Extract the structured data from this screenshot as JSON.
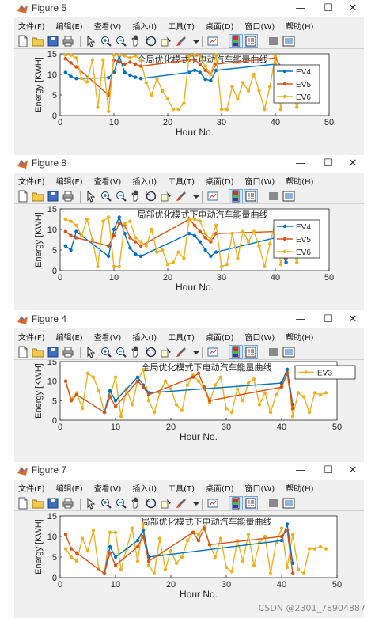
{
  "menus": [
    "文件(F)",
    "编辑(E)",
    "查看(V)",
    "插入(I)",
    "工具(T)",
    "桌面(D)",
    "窗口(W)",
    "帮助(H)"
  ],
  "toolbar_icons": [
    "new-file-icon",
    "open-file-icon",
    "save-icon",
    "print-icon",
    "separator",
    "pointer-icon",
    "zoom-in-icon",
    "zoom-out-icon",
    "pan-icon",
    "rotate-icon",
    "data-cursor-icon",
    "brush-icon",
    "brush-menu-icon",
    "separator",
    "link-plot-icon",
    "separator",
    "colorbar-icon",
    "legend-icon",
    "separator",
    "hide-plot-tools-icon",
    "show-plot-tools-icon"
  ],
  "window_buttons": {
    "minimize": "—",
    "maximize": "☐",
    "close": "✕"
  },
  "colors": {
    "ev4": "#0072bd",
    "ev5": "#d95319",
    "ev6": "#edb120",
    "ev3": "#edb120",
    "axes_bg": "#ffffff",
    "figure_bg": "#f0f0f0"
  },
  "watermark": "CSDN @2301_78904887",
  "figures": [
    {
      "window_title": "Figure 5",
      "chart_data": {
        "type": "line",
        "title": "全局优化模式下电动汽车能量曲线",
        "xlabel": "Hour No.",
        "ylabel": "Energy [KWH]",
        "xlim": [
          0,
          50
        ],
        "ylim": [
          0,
          15
        ],
        "xticks": [
          "0",
          "10",
          "20",
          "30",
          "40",
          "50"
        ],
        "yticks": [
          "0",
          "5",
          "10",
          "15"
        ],
        "legend_position": "top-right",
        "series": [
          {
            "name": "EV4",
            "color": "#0072bd",
            "x": [
              1,
              2,
              3,
              9,
              10,
              11,
              12,
              13,
              14,
              15,
              24,
              25,
              26,
              27,
              28,
              29,
              40,
              41,
              42
            ],
            "y": [
              10.5,
              9.5,
              9.0,
              9.2,
              10.5,
              14.5,
              10.5,
              9.8,
              9.3,
              9.0,
              10.5,
              11.0,
              10.5,
              8.8,
              8.5,
              11.0,
              12.5,
              8.5,
              5.0
            ]
          },
          {
            "name": "EV5",
            "color": "#d95319",
            "x": [
              1,
              2,
              3,
              9,
              10,
              11,
              12,
              13,
              14,
              15,
              24,
              25,
              26,
              27,
              28,
              29,
              40,
              41,
              42
            ],
            "y": [
              13.8,
              12.8,
              11.8,
              5.0,
              13.5,
              13.0,
              12.5,
              13.0,
              12.5,
              12.0,
              13.5,
              13.5,
              12.5,
              11.0,
              10.0,
              12.5,
              14.0,
              12.0,
              7.5
            ]
          },
          {
            "name": "EV6",
            "color": "#edb120",
            "x": [
              1,
              2,
              3,
              4,
              5,
              6,
              7,
              8,
              9,
              10,
              11,
              12,
              13,
              14,
              15,
              16,
              17,
              18,
              19,
              20,
              21,
              22,
              23,
              24,
              25,
              26,
              27,
              28,
              29,
              30,
              31,
              32,
              33,
              34,
              35,
              36,
              37,
              38,
              39,
              40,
              41,
              42,
              43,
              44,
              45,
              46,
              47,
              48
            ],
            "y": [
              14.7,
              14.7,
              14.0,
              9.0,
              8.2,
              13.5,
              2.0,
              13.5,
              1.0,
              14.7,
              14.7,
              14.5,
              14.0,
              14.5,
              13.5,
              8.0,
              5.0,
              9.0,
              6.0,
              4.0,
              1.5,
              1.5,
              3.0,
              14.5,
              14.7,
              14.5,
              12.0,
              10.0,
              14.7,
              1.5,
              1.5,
              7.0,
              4.0,
              8.0,
              6.0,
              10.0,
              6.0,
              1.5,
              7.0,
              14.5,
              1.5,
              7.0,
              6.0,
              2.0,
              6.0,
              6.0,
              6.0,
              6.5
            ]
          }
        ]
      }
    },
    {
      "window_title": "Figure 8",
      "chart_data": {
        "type": "line",
        "title": "局部优化模式下电动汽车能量曲线",
        "xlabel": "Hour No.",
        "ylabel": "Energy [KWH]",
        "xlim": [
          0,
          50
        ],
        "ylim": [
          0,
          15
        ],
        "xticks": [
          "0",
          "10",
          "20",
          "30",
          "40",
          "50"
        ],
        "yticks": [
          "0",
          "5",
          "10",
          "15"
        ],
        "legend_position": "top-right",
        "series": [
          {
            "name": "EV4",
            "color": "#0072bd",
            "x": [
              1,
              2,
              3,
              9,
              10,
              11,
              12,
              13,
              14,
              15,
              24,
              25,
              26,
              27,
              28,
              29,
              40,
              41,
              42
            ],
            "y": [
              6.0,
              5.0,
              9.5,
              3.5,
              10.0,
              13.0,
              9.0,
              5.5,
              4.0,
              3.5,
              9.0,
              8.5,
              7.0,
              5.0,
              3.5,
              4.5,
              8.0,
              5.0,
              2.0
            ]
          },
          {
            "name": "EV5",
            "color": "#d95319",
            "x": [
              1,
              2,
              3,
              9,
              10,
              11,
              12,
              13,
              14,
              15,
              24,
              25,
              26,
              27,
              28,
              29,
              40,
              41,
              42
            ],
            "y": [
              9.5,
              8.5,
              8.0,
              6.0,
              8.5,
              11.5,
              11.0,
              8.0,
              7.0,
              6.0,
              12.5,
              11.0,
              9.5,
              8.0,
              7.0,
              9.0,
              9.5,
              7.0,
              3.0
            ]
          },
          {
            "name": "EV6",
            "color": "#edb120",
            "x": [
              1,
              2,
              3,
              4,
              5,
              6,
              7,
              8,
              9,
              10,
              11,
              12,
              13,
              14,
              15,
              16,
              17,
              18,
              19,
              20,
              21,
              22,
              23,
              24,
              25,
              26,
              27,
              28,
              29,
              30,
              31,
              32,
              33,
              34,
              35,
              36,
              37,
              38,
              39,
              40,
              41,
              42,
              43,
              44,
              45,
              46,
              47,
              48
            ],
            "y": [
              12.5,
              12.0,
              11.0,
              8.5,
              12.5,
              7.5,
              1.0,
              12.0,
              13.0,
              1.0,
              1.0,
              11.5,
              12.0,
              8.0,
              7.0,
              6.0,
              10.0,
              4.5,
              5.0,
              1.5,
              2.0,
              4.5,
              3.0,
              12.5,
              12.5,
              12.0,
              9.0,
              7.5,
              11.0,
              1.0,
              1.5,
              9.0,
              3.0,
              9.5,
              7.0,
              9.5,
              6.0,
              1.0,
              6.5,
              12.0,
              1.5,
              7.0,
              6.5,
              2.0,
              7.0,
              6.0,
              6.5,
              7.0
            ]
          }
        ]
      }
    },
    {
      "window_title": "Figure 4",
      "chart_data": {
        "type": "line",
        "title": "全局优化模式下电动汽车能量曲线",
        "xlabel": "Hour No.",
        "ylabel": "Energy [KWH]",
        "xlim": [
          0,
          50
        ],
        "ylim": [
          0,
          15
        ],
        "xticks": [
          "0",
          "10",
          "20",
          "30",
          "40",
          "50"
        ],
        "yticks": [
          "0",
          "5",
          "10",
          "15"
        ],
        "legend_position": "top-right",
        "series": [
          {
            "name": "EV3",
            "color": "#edb120",
            "x": [
              1,
              2,
              3,
              4,
              5,
              6,
              7,
              8,
              9,
              10,
              11,
              12,
              13,
              14,
              15,
              16,
              17,
              18,
              19,
              20,
              21,
              22,
              23,
              24,
              25,
              26,
              27,
              28,
              29,
              30,
              31,
              32,
              33,
              34,
              35,
              36,
              37,
              38,
              39,
              40,
              41,
              42,
              43,
              44,
              45,
              46,
              47,
              48
            ],
            "y": [
              10.0,
              5.5,
              7.0,
              3.0,
              12.0,
              11.0,
              7.5,
              2.0,
              6.0,
              11.0,
              1.0,
              8.0,
              4.0,
              10.0,
              13.0,
              5.0,
              2.0,
              7.0,
              10.0,
              8.0,
              4.0,
              2.5,
              9.0,
              11.5,
              10.0,
              8.0,
              4.5,
              9.0,
              11.0,
              3.0,
              2.0,
              8.0,
              5.0,
              9.5,
              10.5,
              4.0,
              7.0,
              2.0,
              6.5,
              9.0,
              12.5,
              1.0,
              7.0,
              6.0,
              2.0,
              7.0,
              6.5,
              7.0
            ]
          }
        ],
        "overlay_series": [
          {
            "color": "#0072bd",
            "x": [
              8,
              9,
              10,
              14,
              15,
              16,
              40,
              41,
              42
            ],
            "y": [
              2.0,
              7.5,
              5.0,
              11.0,
              9.0,
              7.0,
              9.5,
              13.0,
              4.0
            ]
          },
          {
            "color": "#d95319",
            "x": [
              1,
              2,
              3,
              8,
              9,
              10,
              14,
              15,
              16,
              24,
              25,
              26,
              27,
              40,
              41,
              42
            ],
            "y": [
              10.0,
              5.0,
              6.5,
              2.0,
              6.0,
              3.5,
              10.0,
              8.5,
              6.5,
              11.0,
              12.0,
              8.5,
              5.0,
              8.5,
              12.0,
              3.0
            ]
          }
        ]
      }
    },
    {
      "window_title": "Figure 7",
      "chart_data": {
        "type": "line",
        "title": "局部优化模式下电动汽车能量曲线",
        "xlabel": "Hour No.",
        "ylabel": "Energy [KWH]",
        "xlim": [
          0,
          50
        ],
        "ylim": [
          0,
          15
        ],
        "xticks": [
          "0",
          "10",
          "20",
          "30",
          "40",
          "50"
        ],
        "yticks": [
          "0",
          "5",
          "10",
          "15"
        ],
        "legend_position": "none",
        "series": [
          {
            "color": "#edb120",
            "x": [
              1,
              2,
              3,
              4,
              5,
              6,
              7,
              8,
              9,
              10,
              11,
              12,
              13,
              14,
              15,
              16,
              17,
              18,
              19,
              20,
              21,
              22,
              23,
              24,
              25,
              26,
              27,
              28,
              29,
              30,
              31,
              32,
              33,
              34,
              35,
              36,
              37,
              38,
              39,
              40,
              41,
              42,
              43,
              44,
              45,
              46,
              47,
              48
            ],
            "y": [
              7.0,
              5.0,
              4.0,
              9.5,
              6.5,
              11.5,
              2.0,
              1.0,
              11.0,
              11.0,
              2.0,
              7.0,
              12.0,
              4.0,
              13.0,
              3.0,
              1.0,
              9.5,
              2.0,
              6.5,
              3.5,
              5.0,
              9.0,
              11.0,
              10.5,
              12.5,
              8.0,
              5.0,
              9.5,
              2.5,
              1.5,
              9.0,
              4.0,
              10.5,
              3.0,
              8.5,
              10.0,
              1.0,
              8.5,
              12.0,
              2.5,
              10.5,
              2.0,
              1.0,
              7.0,
              7.0,
              7.5,
              7.0
            ]
          }
        ],
        "overlay_series": [
          {
            "color": "#0072bd",
            "x": [
              8,
              9,
              10,
              14,
              15,
              16,
              40,
              41,
              42
            ],
            "y": [
              1.0,
              7.5,
              5.0,
              9.0,
              11.5,
              5.0,
              9.0,
              13.0,
              3.5
            ]
          },
          {
            "color": "#d95319",
            "x": [
              1,
              2,
              3,
              8,
              9,
              10,
              14,
              15,
              16,
              24,
              25,
              26,
              27,
              40,
              41,
              42
            ],
            "y": [
              10.5,
              7.0,
              6.0,
              1.0,
              6.0,
              3.0,
              7.5,
              10.0,
              4.0,
              11.0,
              9.0,
              12.0,
              8.0,
              10.0,
              11.5,
              1.0
            ]
          }
        ]
      }
    }
  ]
}
